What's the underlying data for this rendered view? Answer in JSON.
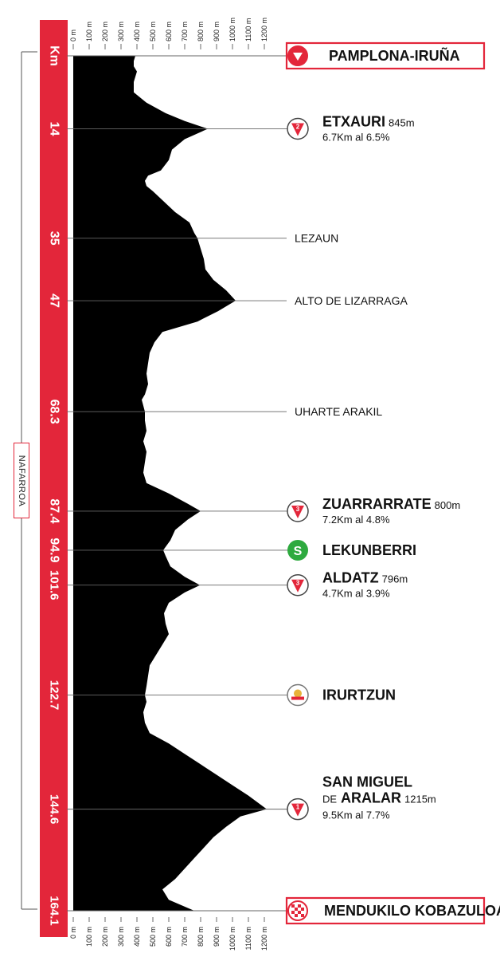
{
  "axis": {
    "unit_label": "Km",
    "alt_ticks": [
      "0 m",
      "100 m",
      "200 m",
      "300 m",
      "400 m",
      "500 m",
      "600 m",
      "700 m",
      "800 m",
      "900 m",
      "1000 m",
      "1100 m",
      "1200 m"
    ]
  },
  "region": {
    "label": "NAFARROA"
  },
  "colors": {
    "accent": "#e3263a",
    "profile": "#000000",
    "sprint": "#2eaa3f"
  },
  "chart_data": {
    "type": "area",
    "title": "",
    "xlabel": "Km",
    "ylabel": "",
    "xlim": [
      0,
      164.1
    ],
    "ylim": [
      0,
      1200
    ],
    "x": [
      0,
      1,
      2,
      3,
      5,
      7,
      9,
      11,
      12.5,
      14,
      16,
      18,
      20,
      22,
      23,
      24,
      25,
      26,
      28,
      30,
      32,
      34,
      35,
      37,
      39,
      41,
      43,
      45,
      47,
      49,
      51,
      53,
      55,
      57,
      59,
      61,
      63,
      65,
      66,
      68.3,
      70,
      72,
      74,
      76,
      78,
      80,
      82,
      84,
      86,
      87.4,
      89,
      91,
      93,
      94.9,
      96,
      98,
      100,
      101.6,
      103,
      105,
      107,
      109,
      111,
      113,
      115,
      117,
      119,
      121,
      122.7,
      124,
      126,
      128,
      130,
      132,
      134,
      136,
      138,
      140,
      142,
      144.6,
      146,
      148,
      150,
      152,
      154,
      156,
      158,
      160,
      162,
      164.1
    ],
    "series": [
      {
        "values": [
          390,
          380,
          380,
          400,
          380,
          380,
          460,
          580,
          700,
          845,
          700,
          620,
          600,
          550,
          470,
          450,
          460,
          500,
          570,
          640,
          730,
          760,
          780,
          800,
          820,
          830,
          880,
          960,
          1020,
          910,
          780,
          560,
          510,
          480,
          470,
          460,
          470,
          450,
          430,
          450,
          450,
          460,
          440,
          460,
          450,
          440,
          460,
          600,
          720,
          800,
          720,
          640,
          610,
          565,
          580,
          610,
          700,
          796,
          700,
          600,
          570,
          580,
          600,
          560,
          520,
          480,
          470,
          460,
          450,
          460,
          440,
          450,
          480,
          600,
          700,
          800,
          900,
          1000,
          1100,
          1215,
          1050,
          960,
          880,
          820,
          760,
          700,
          640,
          560,
          600,
          760
        ]
      }
    ]
  },
  "waypoints": [
    {
      "km": "Km",
      "km_num": 0,
      "name": "PAMPLONA-IRUÑA",
      "alt": "",
      "climb": "",
      "icon": "start-icon",
      "style": "box"
    },
    {
      "km": "14",
      "km_num": 14,
      "name": "ETXAURI",
      "alt": "845m",
      "climb": "6.7Km al 6.5%",
      "icon": "cat-2-climb-icon",
      "cat": "2",
      "style": "climb"
    },
    {
      "km": "35",
      "km_num": 35,
      "name": "LEZAUN",
      "alt": "",
      "climb": "",
      "icon": "",
      "style": "plain"
    },
    {
      "km": "47",
      "km_num": 47,
      "name": "ALTO DE LIZARRAGA",
      "alt": "",
      "climb": "",
      "icon": "",
      "style": "plain"
    },
    {
      "km": "68.3",
      "km_num": 68.3,
      "name": "UHARTE ARAKIL",
      "alt": "",
      "climb": "",
      "icon": "",
      "style": "plain"
    },
    {
      "km": "87.4",
      "km_num": 87.4,
      "name": "ZUARRARRATE",
      "alt": "800m",
      "climb": "7.2Km al 4.8%",
      "icon": "cat-3-climb-icon",
      "cat": "3",
      "style": "climb"
    },
    {
      "km": "94.9",
      "km_num": 94.9,
      "name": "LEKUNBERRI",
      "alt": "",
      "climb": "",
      "icon": "sprint-icon",
      "style": "sprint"
    },
    {
      "km": "101.6",
      "km_num": 101.6,
      "name": "ALDATZ",
      "alt": "796m",
      "climb": "4.7Km al 3.9%",
      "icon": "cat-3-climb-icon",
      "cat": "3",
      "style": "climb"
    },
    {
      "km": "122.7",
      "km_num": 122.7,
      "name": "IRURTZUN",
      "alt": "",
      "climb": "",
      "icon": "redbull-icon",
      "style": "bonus"
    },
    {
      "km": "144.6",
      "km_num": 144.6,
      "name": "SAN MIGUEL",
      "name_prefix": "DE",
      "name2": "ARALAR",
      "alt": "1215m",
      "climb": "9.5Km al 7.7%",
      "icon": "cat-1-climb-icon",
      "cat": "1",
      "style": "climb2"
    },
    {
      "km": "164.1",
      "km_num": 164.1,
      "name": "MENDUKILO KOBAZULOA",
      "alt": "",
      "climb": "",
      "icon": "finish-icon",
      "style": "box"
    }
  ]
}
